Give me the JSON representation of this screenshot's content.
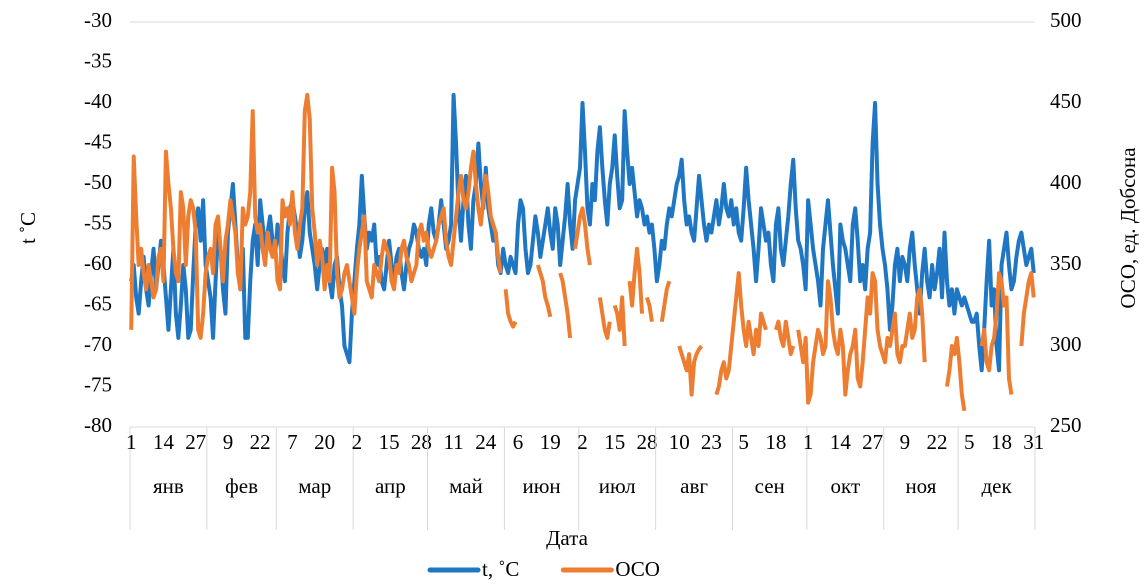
{
  "chart_data": {
    "type": "line",
    "y_title": "t ˚C",
    "y2_title": "ОСО, ед. Добсона",
    "x_title": "Дата",
    "ylim": [
      -80,
      -30
    ],
    "yticks": [
      -80,
      -75,
      -70,
      -65,
      -60,
      -55,
      -50,
      -45,
      -40,
      -35,
      -30
    ],
    "y2lim": [
      250,
      500
    ],
    "y2ticks": [
      250,
      300,
      350,
      400,
      450,
      500
    ],
    "legend": "bottom",
    "grid": false,
    "months": [
      {
        "name": "янв",
        "days": [
          1,
          null,
          null,
          null,
          null,
          null,
          null,
          null,
          null,
          null,
          null,
          null,
          null,
          14,
          null,
          null,
          null,
          null,
          null,
          null,
          null,
          null,
          null,
          null,
          null,
          null,
          27,
          null,
          null,
          null,
          null
        ]
      },
      {
        "name": "фев",
        "days": [
          null,
          null,
          null,
          null,
          null,
          null,
          null,
          null,
          9,
          null,
          null,
          null,
          null,
          null,
          null,
          null,
          null,
          null,
          null,
          null,
          null,
          22,
          null,
          null,
          null,
          null,
          null,
          null
        ]
      },
      {
        "name": "мар",
        "days": [
          null,
          null,
          null,
          null,
          null,
          null,
          7,
          null,
          null,
          null,
          null,
          null,
          null,
          null,
          null,
          null,
          null,
          null,
          null,
          20,
          null,
          null,
          null,
          null,
          null,
          null,
          null,
          null,
          null,
          null,
          null
        ]
      },
      {
        "name": "апр",
        "days": [
          null,
          2,
          null,
          null,
          null,
          null,
          null,
          null,
          null,
          null,
          null,
          null,
          null,
          null,
          15,
          null,
          null,
          null,
          null,
          null,
          null,
          null,
          null,
          null,
          null,
          null,
          null,
          28,
          null,
          null
        ]
      },
      {
        "name": "май",
        "days": [
          null,
          null,
          null,
          null,
          null,
          null,
          null,
          null,
          null,
          null,
          11,
          null,
          null,
          null,
          null,
          null,
          null,
          null,
          null,
          null,
          null,
          null,
          null,
          24,
          null,
          null,
          null,
          null,
          null,
          null,
          null
        ]
      },
      {
        "name": "июн",
        "days": [
          null,
          null,
          null,
          null,
          null,
          6,
          null,
          null,
          null,
          null,
          null,
          null,
          null,
          null,
          null,
          null,
          null,
          null,
          19,
          null,
          null,
          null,
          null,
          null,
          null,
          null,
          null,
          null,
          null,
          null
        ]
      },
      {
        "name": "июл",
        "days": [
          null,
          2,
          null,
          null,
          null,
          null,
          null,
          null,
          null,
          null,
          null,
          null,
          null,
          null,
          15,
          null,
          null,
          null,
          null,
          null,
          null,
          null,
          null,
          null,
          null,
          null,
          null,
          28,
          null,
          null,
          null
        ]
      },
      {
        "name": "авг",
        "days": [
          null,
          null,
          null,
          null,
          null,
          null,
          null,
          null,
          null,
          10,
          null,
          null,
          null,
          null,
          null,
          null,
          null,
          null,
          null,
          null,
          null,
          null,
          23,
          null,
          null,
          null,
          null,
          null,
          null,
          null,
          null
        ]
      },
      {
        "name": "сен",
        "days": [
          null,
          null,
          null,
          null,
          5,
          null,
          null,
          null,
          null,
          null,
          null,
          null,
          null,
          null,
          null,
          null,
          null,
          18,
          null,
          null,
          null,
          null,
          null,
          null,
          null,
          null,
          null,
          null,
          null,
          null
        ]
      },
      {
        "name": "окт",
        "days": [
          1,
          null,
          null,
          null,
          null,
          null,
          null,
          null,
          null,
          null,
          null,
          null,
          null,
          14,
          null,
          null,
          null,
          null,
          null,
          null,
          null,
          null,
          null,
          null,
          null,
          null,
          27,
          null,
          null,
          null,
          null
        ]
      },
      {
        "name": "ноя",
        "days": [
          null,
          null,
          null,
          null,
          null,
          null,
          null,
          null,
          9,
          null,
          null,
          null,
          null,
          null,
          null,
          null,
          null,
          null,
          null,
          null,
          null,
          22,
          null,
          null,
          null,
          null,
          null,
          null,
          null,
          null
        ]
      },
      {
        "name": "дек",
        "days": [
          null,
          null,
          null,
          null,
          5,
          null,
          null,
          null,
          null,
          null,
          null,
          null,
          null,
          null,
          null,
          null,
          null,
          18,
          null,
          null,
          null,
          null,
          null,
          null,
          null,
          null,
          null,
          null,
          null,
          null,
          31
        ]
      }
    ],
    "series": [
      {
        "name": "t, ˚C",
        "color": "#1f77c4",
        "axis": "y",
        "values": [
          -62,
          -60,
          -64,
          -66,
          -62,
          -59,
          -63,
          -65,
          -61,
          -58,
          -63,
          -60,
          -57,
          -60,
          -64,
          -68,
          -63,
          -58,
          -66,
          -69,
          -65,
          -60,
          -63,
          -69,
          -68,
          -61,
          -55,
          -53,
          -57,
          -52,
          -60,
          -62,
          -64,
          -69,
          -62,
          -56,
          -58,
          -63,
          -66,
          -56,
          -53,
          -50,
          -55,
          -60,
          -63,
          -58,
          -69,
          -69,
          -62,
          -57,
          -55,
          -60,
          -52,
          -55,
          -58,
          -56,
          -54,
          -57,
          -59,
          -55,
          -57,
          -60,
          -62,
          -56,
          -53,
          -52,
          -54,
          -56,
          -59,
          -57,
          -53,
          -51,
          -56,
          -58,
          -60,
          -63,
          -60,
          -58,
          -60,
          -58,
          -62,
          -64,
          -60,
          -59,
          -63,
          -65,
          -70,
          -71,
          -72,
          -66,
          -62,
          -58,
          -55,
          -49,
          -54,
          -58,
          -56,
          -57,
          -55,
          -60,
          -59,
          -62,
          -63,
          -60,
          -57,
          -60,
          -62,
          -59,
          -58,
          -61,
          -63,
          -60,
          -58,
          -57,
          -55,
          -56,
          -58,
          -59,
          -58,
          -60,
          -55,
          -53,
          -56,
          -57,
          -55,
          -52,
          -55,
          -58,
          -57,
          -55,
          -39,
          -45,
          -53,
          -57,
          -52,
          -49,
          -55,
          -58,
          -52,
          -50,
          -45,
          -50,
          -53,
          -48,
          -53,
          -55,
          -57,
          -56,
          -60,
          -61,
          -58,
          -60,
          -61,
          -59,
          -60,
          -61,
          -55,
          -52,
          -53,
          -58,
          -61,
          -60,
          -57,
          -54,
          -56,
          -59,
          -57,
          -55,
          -53,
          -56,
          -58,
          -53,
          -55,
          -60,
          -57,
          -54,
          -50,
          -55,
          -58,
          -52,
          -50,
          -48,
          -40,
          -46,
          -53,
          -55,
          -50,
          -52,
          -46,
          -43,
          -48,
          -52,
          -55,
          -50,
          -48,
          -44,
          -49,
          -53,
          -52,
          -41,
          -46,
          -50,
          -48,
          -51,
          -54,
          -52,
          -53,
          -55,
          -54,
          -56,
          -55,
          -58,
          -62,
          -60,
          -57,
          -58,
          -55,
          -53,
          -54,
          -52,
          -50,
          -49,
          -47,
          -52,
          -55,
          -54,
          -56,
          -57,
          -53,
          -49,
          -52,
          -55,
          -57,
          -55,
          -56,
          -54,
          -52,
          -55,
          -53,
          -50,
          -53,
          -54,
          -52,
          -55,
          -53,
          -56,
          -57,
          -53,
          -48,
          -52,
          -55,
          -58,
          -62,
          -58,
          -53,
          -55,
          -57,
          -56,
          -60,
          -62,
          -55,
          -53,
          -58,
          -60,
          -57,
          -54,
          -50,
          -47,
          -53,
          -57,
          -58,
          -60,
          -63,
          -52,
          -55,
          -58,
          -60,
          -62,
          -65,
          -58,
          -55,
          -52,
          -56,
          -60,
          -63,
          -66,
          -55,
          -57,
          -58,
          -60,
          -62,
          -55,
          -53,
          -57,
          -62,
          -60,
          -63,
          -58,
          -56,
          -45,
          -40,
          -50,
          -55,
          -58,
          -60,
          -63,
          -68,
          -65,
          -60,
          -58,
          -62,
          -59,
          -60,
          -62,
          -58,
          -56,
          -60,
          -63,
          -66,
          -61,
          -58,
          -62,
          -64,
          -60,
          -63,
          -61,
          -58,
          -64,
          -56,
          -62,
          -65,
          -63,
          -66,
          -63,
          -64,
          -65,
          -64,
          -65,
          -66,
          -67,
          -67,
          -66,
          -70,
          -73,
          -68,
          -62,
          -57,
          -65,
          -63,
          -70,
          -73,
          -60,
          -58,
          -56,
          -60,
          -63,
          -62,
          -59,
          -57,
          -56,
          -58,
          -60,
          -59,
          -58,
          -61
        ]
      },
      {
        "name": "ОСО",
        "color": "#ed7d31",
        "axis": "y2",
        "values": [
          310,
          417,
          380,
          350,
          360,
          345,
          335,
          350,
          340,
          330,
          335,
          355,
          360,
          340,
          420,
          400,
          385,
          360,
          345,
          340,
          395,
          385,
          350,
          380,
          390,
          385,
          370,
          310,
          305,
          320,
          345,
          355,
          360,
          345,
          375,
          380,
          360,
          340,
          365,
          375,
          390,
          380,
          370,
          345,
          335,
          385,
          375,
          380,
          395,
          445,
          380,
          370,
          375,
          360,
          350,
          370,
          360,
          355,
          365,
          340,
          335,
          390,
          380,
          385,
          375,
          395,
          370,
          360,
          375,
          385,
          445,
          455,
          440,
          385,
          370,
          350,
          365,
          355,
          335,
          350,
          340,
          410,
          395,
          345,
          330,
          335,
          345,
          350,
          340,
          330,
          320,
          345,
          360,
          370,
          380,
          340,
          335,
          330,
          350,
          345,
          340,
          355,
          365,
          360,
          355,
          340,
          335,
          350,
          345,
          360,
          365,
          355,
          350,
          340,
          345,
          350,
          370,
          375,
          365,
          370,
          360,
          355,
          360,
          365,
          375,
          380,
          385,
          365,
          355,
          350,
          365,
          380,
          395,
          405,
          390,
          385,
          395,
          410,
          420,
          400,
          385,
          375,
          390,
          405,
          395,
          380,
          375,
          370,
          355,
          345,
          null,
          335,
          320,
          315,
          312,
          315,
          null,
          null,
          null,
          null,
          null,
          null,
          null,
          null,
          350,
          345,
          340,
          330,
          325,
          318,
          null,
          null,
          null,
          345,
          340,
          330,
          320,
          305,
          null,
          360,
          370,
          380,
          385,
          375,
          360,
          350,
          null,
          null,
          null,
          330,
          320,
          310,
          305,
          315,
          null,
          325,
          320,
          310,
          330,
          300,
          null,
          340,
          325,
          345,
          360,
          345,
          320,
          null,
          330,
          325,
          315,
          null,
          null,
          null,
          315,
          325,
          335,
          340,
          null,
          null,
          null,
          300,
          295,
          290,
          285,
          295,
          270,
          290,
          295,
          298,
          300,
          null,
          null,
          null,
          null,
          null,
          270,
          275,
          285,
          290,
          280,
          285,
          300,
          315,
          330,
          345,
          325,
          310,
          300,
          315,
          305,
          295,
          310,
          300,
          320,
          315,
          310,
          null,
          null,
          null,
          310,
          315,
          305,
          300,
          315,
          305,
          295,
          300,
          null,
          310,
          300,
          290,
          305,
          265,
          270,
          290,
          300,
          310,
          305,
          295,
          300,
          340,
          330,
          310,
          300,
          295,
          310,
          300,
          270,
          285,
          295,
          300,
          310,
          280,
          275,
          290,
          310,
          330,
          320,
          345,
          340,
          310,
          300,
          295,
          290,
          305,
          300,
          310,
          320,
          295,
          290,
          300,
          300,
          310,
          320,
          305,
          310,
          330,
          335,
          320,
          290,
          null,
          null,
          null,
          null,
          null,
          null,
          null,
          null,
          275,
          285,
          300,
          295,
          305,
          290,
          270,
          260,
          null,
          null,
          null,
          null,
          null,
          null,
          300,
          310,
          290,
          285,
          300,
          305,
          320,
          345,
          340,
          325,
          330,
          280,
          270,
          null,
          null,
          null,
          300,
          320,
          330,
          340,
          345,
          330
        ]
      }
    ]
  }
}
